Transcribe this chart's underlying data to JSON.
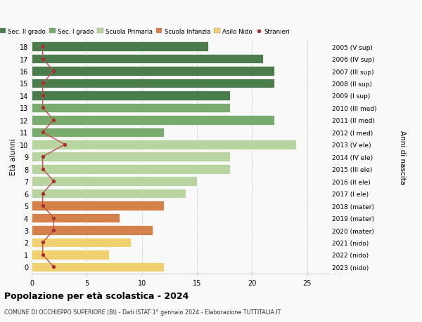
{
  "ages": [
    18,
    17,
    16,
    15,
    14,
    13,
    12,
    11,
    10,
    9,
    8,
    7,
    6,
    5,
    4,
    3,
    2,
    1,
    0
  ],
  "years": [
    "2005 (V sup)",
    "2006 (IV sup)",
    "2007 (III sup)",
    "2008 (II sup)",
    "2009 (I sup)",
    "2010 (III med)",
    "2011 (II med)",
    "2012 (I med)",
    "2013 (V ele)",
    "2014 (IV ele)",
    "2015 (III ele)",
    "2016 (II ele)",
    "2017 (I ele)",
    "2018 (mater)",
    "2019 (mater)",
    "2020 (mater)",
    "2021 (nido)",
    "2022 (nido)",
    "2023 (nido)"
  ],
  "bar_values": [
    16,
    21,
    22,
    22,
    18,
    18,
    22,
    12,
    24,
    18,
    18,
    15,
    14,
    12,
    8,
    11,
    9,
    7,
    12
  ],
  "bar_colors": [
    "#4a7c4e",
    "#4a7c4e",
    "#4a7c4e",
    "#4a7c4e",
    "#4a7c4e",
    "#7aab6e",
    "#7aab6e",
    "#7aab6e",
    "#b8d4a0",
    "#b8d4a0",
    "#b8d4a0",
    "#b8d4a0",
    "#b8d4a0",
    "#d4824a",
    "#d4824a",
    "#d4824a",
    "#f0d070",
    "#f0d070",
    "#f0d070"
  ],
  "stranieri_values": [
    1,
    1,
    2,
    1,
    1,
    1,
    2,
    1,
    3,
    1,
    1,
    2,
    1,
    1,
    2,
    2,
    1,
    1,
    2
  ],
  "legend_labels": [
    "Sec. II grado",
    "Sec. I grado",
    "Scuola Primaria",
    "Scuola Infanzia",
    "Asilo Nido",
    "Stranieri"
  ],
  "legend_colors": [
    "#4a7c4e",
    "#7aab6e",
    "#b8d4a0",
    "#d4824a",
    "#f0d070",
    "#a83232"
  ],
  "title": "Popolazione per età scolastica - 2024",
  "subtitle": "COMUNE DI OCCHIEPPO SUPERIORE (BI) - Dati ISTAT 1° gennaio 2024 - Elaborazione TUTTITALIA.IT",
  "ylabel": "Età alunni",
  "right_label": "Anni di nascita",
  "xlabel_values": [
    0,
    5,
    10,
    15,
    20,
    25
  ],
  "xlim": [
    0,
    27
  ],
  "background_color": "#f9f9f9",
  "grid_color": "#cccccc",
  "bar_height": 0.78,
  "stranieri_color": "#a83232",
  "stranieri_line_color": "#c05050"
}
